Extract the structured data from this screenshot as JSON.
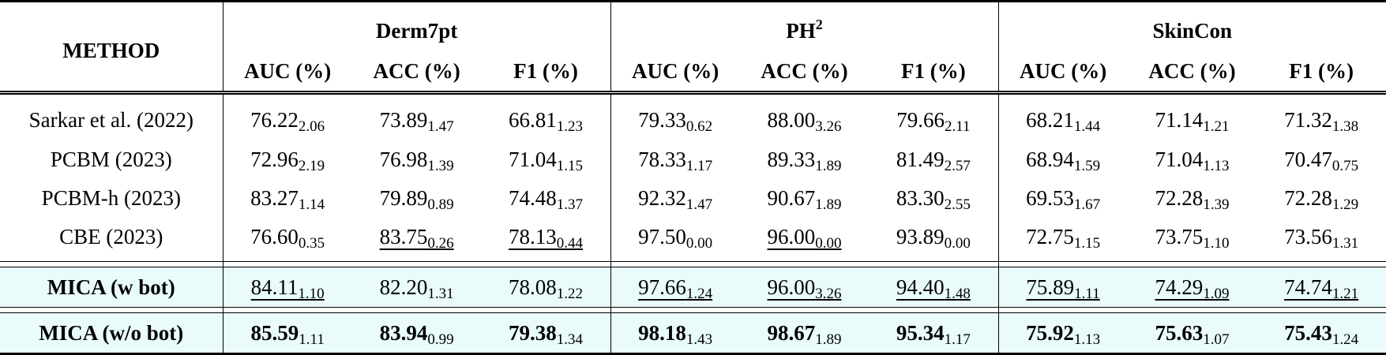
{
  "table": {
    "method_header": "METHOD",
    "groups": [
      {
        "name": "Derm7pt",
        "sup": ""
      },
      {
        "name": "PH",
        "sup": "2"
      },
      {
        "name": "SkinCon",
        "sup": ""
      }
    ],
    "metrics": [
      "AUC (%)",
      "ACC (%)",
      "F1 (%)"
    ],
    "rows": [
      {
        "method": "Sarkar et al. (2022)",
        "cells": [
          {
            "v": "76.22",
            "s": "2.06"
          },
          {
            "v": "73.89",
            "s": "1.47"
          },
          {
            "v": "66.81",
            "s": "1.23"
          },
          {
            "v": "79.33",
            "s": "0.62"
          },
          {
            "v": "88.00",
            "s": "3.26"
          },
          {
            "v": "79.66",
            "s": "2.11"
          },
          {
            "v": "68.21",
            "s": "1.44"
          },
          {
            "v": "71.14",
            "s": "1.21"
          },
          {
            "v": "71.32",
            "s": "1.38"
          }
        ]
      },
      {
        "method": "PCBM (2023)",
        "cells": [
          {
            "v": "72.96",
            "s": "2.19"
          },
          {
            "v": "76.98",
            "s": "1.39"
          },
          {
            "v": "71.04",
            "s": "1.15"
          },
          {
            "v": "78.33",
            "s": "1.17"
          },
          {
            "v": "89.33",
            "s": "1.89"
          },
          {
            "v": "81.49",
            "s": "2.57"
          },
          {
            "v": "68.94",
            "s": "1.59"
          },
          {
            "v": "71.04",
            "s": "1.13"
          },
          {
            "v": "70.47",
            "s": "0.75"
          }
        ]
      },
      {
        "method": "PCBM-h (2023)",
        "cells": [
          {
            "v": "83.27",
            "s": "1.14"
          },
          {
            "v": "79.89",
            "s": "0.89"
          },
          {
            "v": "74.48",
            "s": "1.37"
          },
          {
            "v": "92.32",
            "s": "1.47"
          },
          {
            "v": "90.67",
            "s": "1.89"
          },
          {
            "v": "83.30",
            "s": "2.55"
          },
          {
            "v": "69.53",
            "s": "1.67"
          },
          {
            "v": "72.28",
            "s": "1.39"
          },
          {
            "v": "72.28",
            "s": "1.29"
          }
        ]
      },
      {
        "method": "CBE (2023)",
        "cells": [
          {
            "v": "76.60",
            "s": "0.35"
          },
          {
            "v": "83.75",
            "s": "0.26",
            "u": true
          },
          {
            "v": "78.13",
            "s": "0.44",
            "u": true
          },
          {
            "v": "97.50",
            "s": "0.00"
          },
          {
            "v": "96.00",
            "s": "0.00",
            "u": true
          },
          {
            "v": "93.89",
            "s": "0.00"
          },
          {
            "v": "72.75",
            "s": "1.15"
          },
          {
            "v": "73.75",
            "s": "1.10"
          },
          {
            "v": "73.56",
            "s": "1.31"
          }
        ]
      }
    ],
    "highlight_rows": [
      {
        "method": "MICA (w bot)",
        "cells": [
          {
            "v": "84.11",
            "s": "1.10",
            "u": true
          },
          {
            "v": "82.20",
            "s": "1.31"
          },
          {
            "v": "78.08",
            "s": "1.22"
          },
          {
            "v": "97.66",
            "s": "1.24",
            "u": true
          },
          {
            "v": "96.00",
            "s": "3.26",
            "u": true
          },
          {
            "v": "94.40",
            "s": "1.48",
            "u": true
          },
          {
            "v": "75.89",
            "s": "1.11",
            "u": true
          },
          {
            "v": "74.29",
            "s": "1.09",
            "u": true
          },
          {
            "v": "74.74",
            "s": "1.21",
            "u": true
          }
        ]
      },
      {
        "method": "MICA (w/o bot)",
        "cells": [
          {
            "v": "85.59",
            "s": "1.11",
            "b": true
          },
          {
            "v": "83.94",
            "s": "0.99",
            "b": true
          },
          {
            "v": "79.38",
            "s": "1.34",
            "b": true
          },
          {
            "v": "98.18",
            "s": "1.43",
            "b": true
          },
          {
            "v": "98.67",
            "s": "1.89",
            "b": true
          },
          {
            "v": "95.34",
            "s": "1.17",
            "b": true
          },
          {
            "v": "75.92",
            "s": "1.13",
            "b": true
          },
          {
            "v": "75.63",
            "s": "1.07",
            "b": true
          },
          {
            "v": "75.43",
            "s": "1.24",
            "b": true
          }
        ]
      }
    ],
    "colors": {
      "highlight_bg": "#e9fbfb",
      "rule": "#000000"
    }
  }
}
